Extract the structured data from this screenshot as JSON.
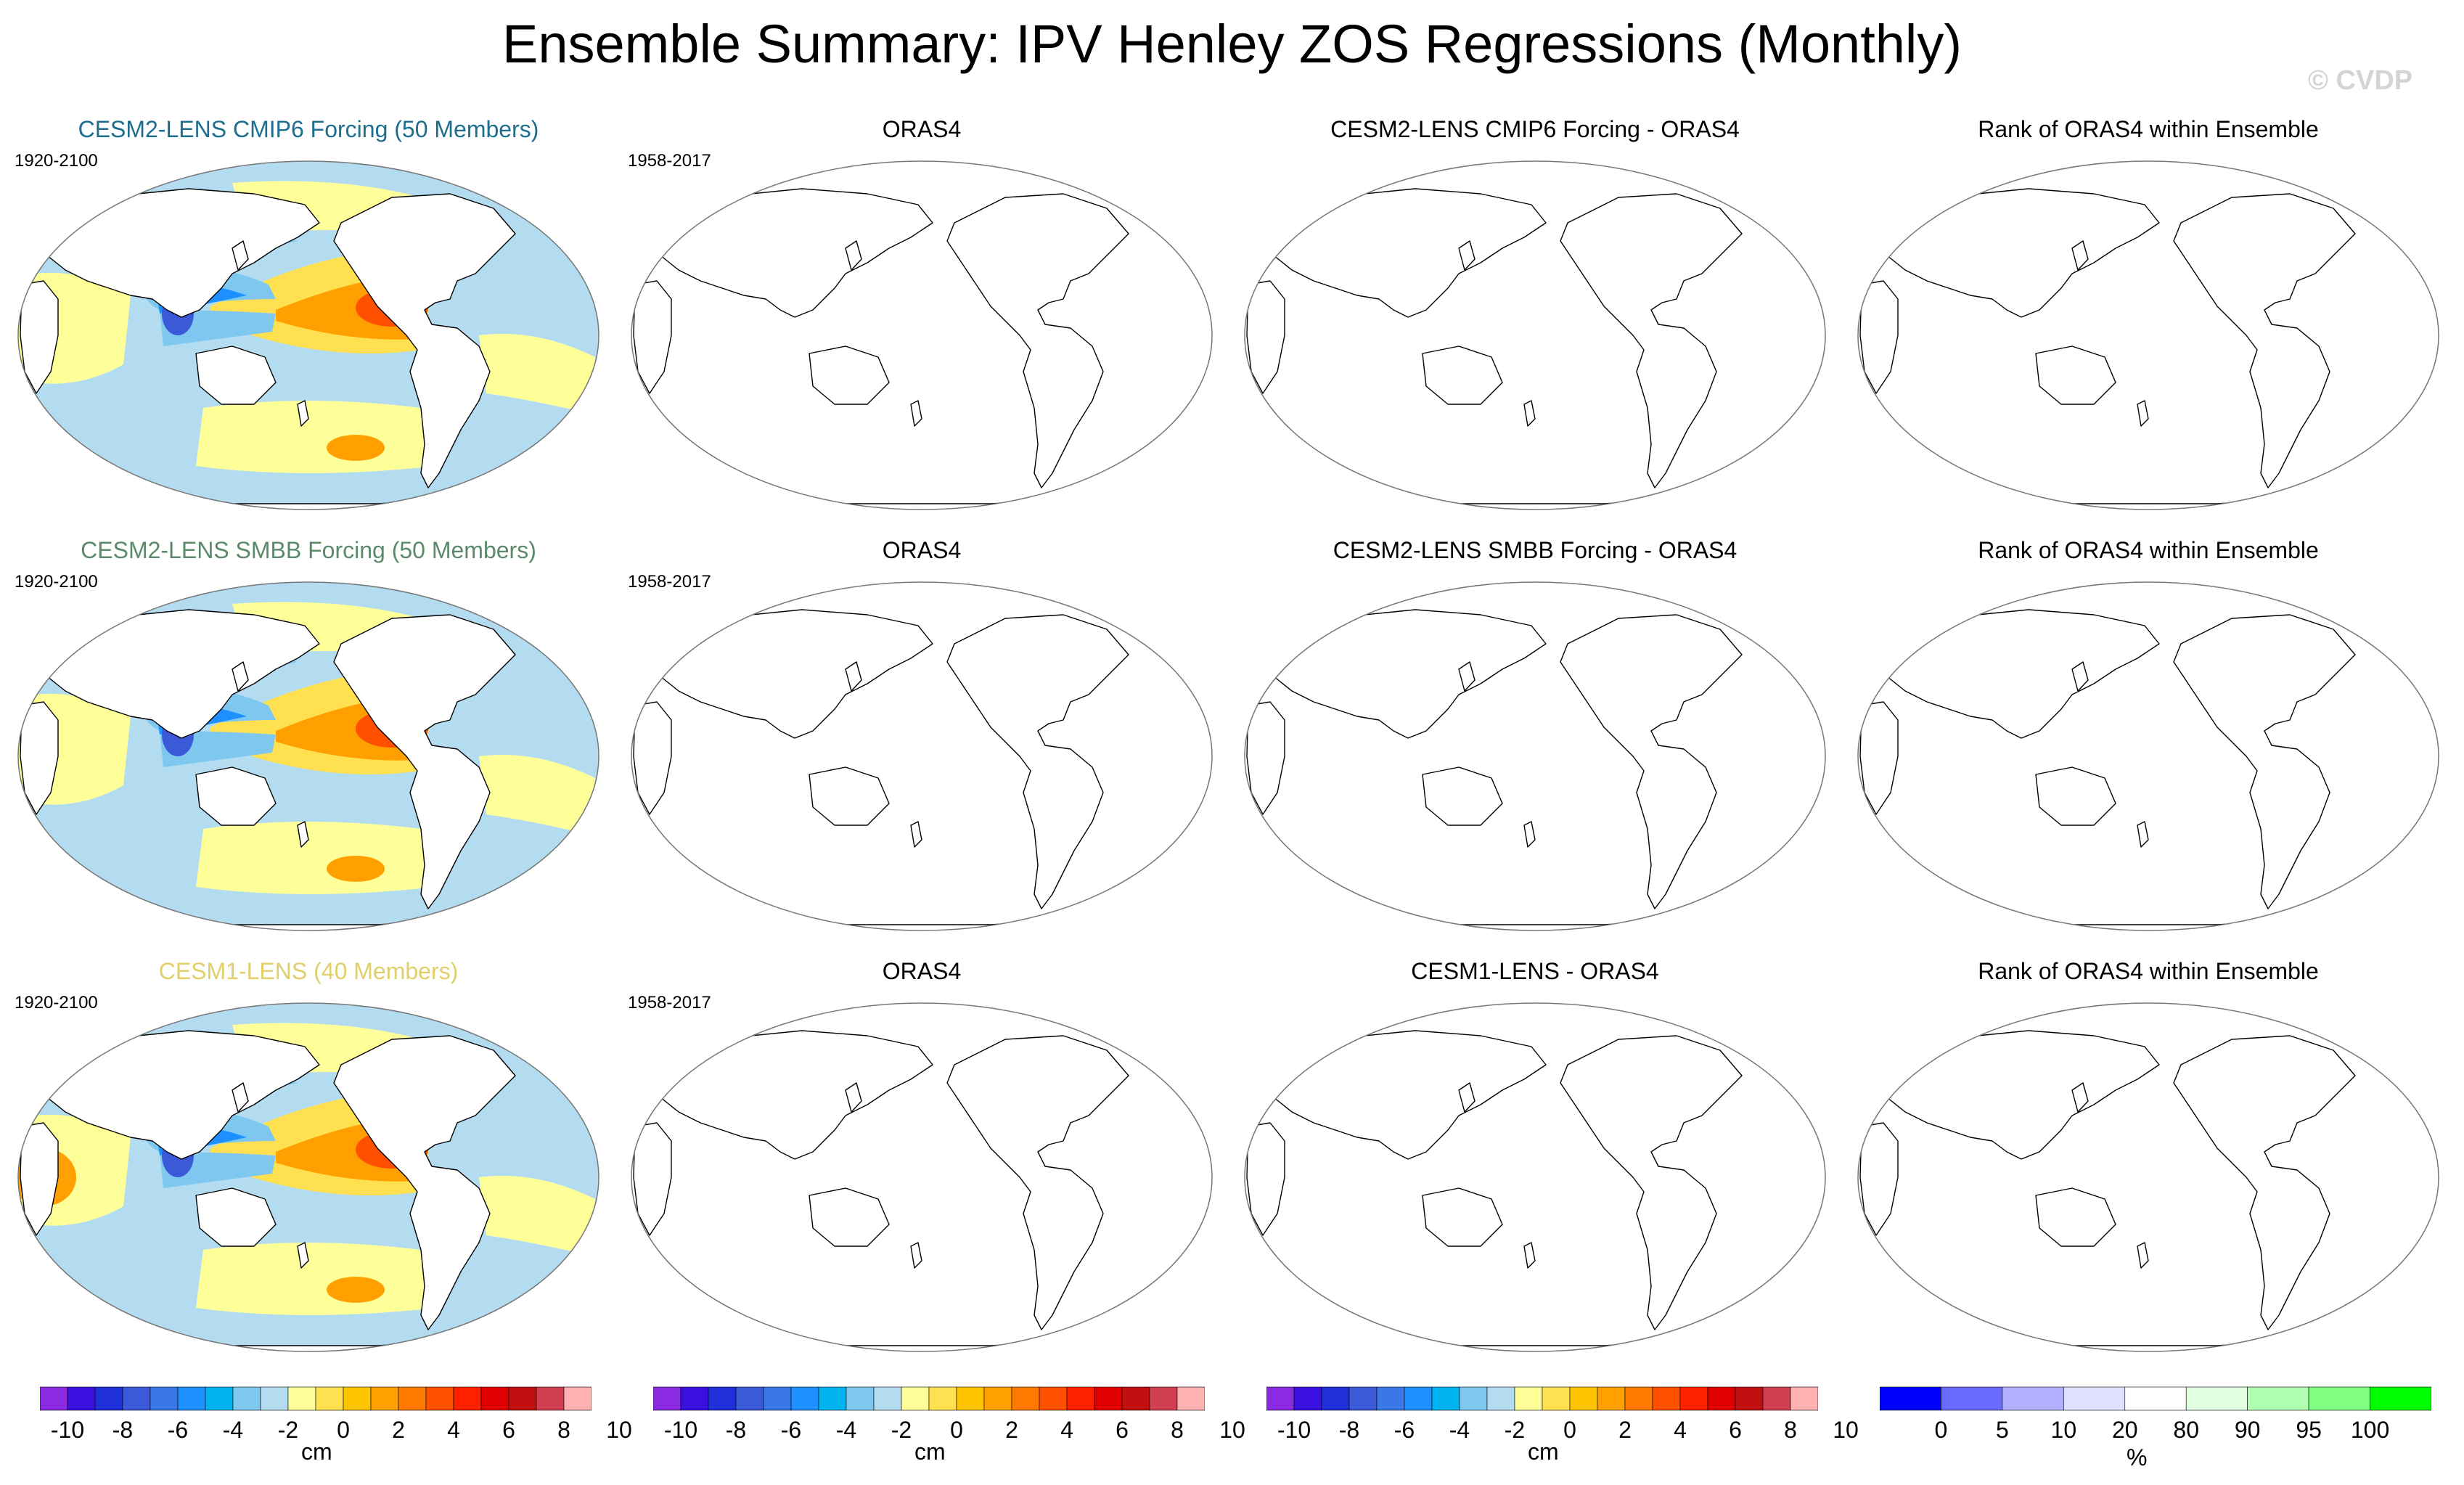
{
  "title": "Ensemble Summary: IPV Henley ZOS Regressions (Monthly)",
  "watermark": "© CVDP",
  "rows": [
    {
      "model_title": "CESM2-LENS CMIP6 Forcing (50 Members)",
      "model_title_color": "#1d6e8e",
      "model_period": "1920-2100",
      "obs_title": "ORAS4",
      "obs_period": "1958-2017",
      "diff_title": "CESM2-LENS CMIP6 Forcing - ORAS4",
      "rank_title": "Rank of ORAS4 within Ensemble"
    },
    {
      "model_title": "CESM2-LENS SMBB Forcing (50 Members)",
      "model_title_color": "#5a8a6a",
      "model_period": "1920-2100",
      "obs_title": "ORAS4",
      "obs_period": "1958-2017",
      "diff_title": "CESM2-LENS SMBB Forcing - ORAS4",
      "rank_title": "Rank of ORAS4 within Ensemble"
    },
    {
      "model_title": "CESM1-LENS (40 Members)",
      "model_title_color": "#e0cf6a",
      "model_period": "1920-2100",
      "obs_title": "ORAS4",
      "obs_period": "1958-2017",
      "diff_title": "CESM1-LENS - ORAS4",
      "rank_title": "Rank of ORAS4 within Ensemble"
    }
  ],
  "regression_colorbar": {
    "unit": "cm",
    "labels": [
      "-10",
      "-8",
      "-6",
      "-4",
      "-2",
      "0",
      "2",
      "4",
      "6",
      "8",
      "10"
    ],
    "colors": [
      "#8a2be2",
      "#3a10e0",
      "#2030d8",
      "#3a5ad8",
      "#3a78e8",
      "#1e90ff",
      "#00b4f0",
      "#7ec8f0",
      "#b4dcf0",
      "#ffff9a",
      "#ffe050",
      "#ffc400",
      "#ffa000",
      "#ff7800",
      "#ff5000",
      "#ff2000",
      "#e00000",
      "#c01010",
      "#d04050",
      "#ffb0b0"
    ]
  },
  "rank_colorbar": {
    "unit": "%",
    "labels": [
      "0",
      "5",
      "10",
      "20",
      "80",
      "90",
      "95",
      "100"
    ],
    "colors": [
      "#0000ff",
      "#6a6aff",
      "#b0b0ff",
      "#e0e0ff",
      "#ffffff",
      "#e0ffe0",
      "#b0ffb0",
      "#80ff80",
      "#00ff00"
    ]
  },
  "map_colors": {
    "land": "#ffffff",
    "coast": "#000000",
    "light_blue": "#b4dcf0",
    "mid_blue": "#7ec8f0",
    "blue": "#1e90ff",
    "dark_blue": "#3a5ad8",
    "yellow": "#ffff9a",
    "gold": "#ffe050",
    "orange": "#ffa000",
    "red_orange": "#ff5000"
  }
}
